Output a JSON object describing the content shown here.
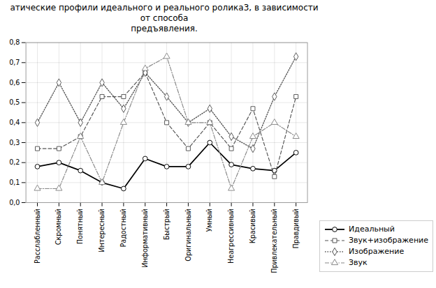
{
  "chart_data": {
    "type": "line",
    "title": "атические профили идеального и реального ролика3, в зависимости от способа\nпредъявления.",
    "categories": [
      "Расслабленный",
      "Скромный",
      "Понятный",
      "Интересный",
      "Радостный",
      "Информативный",
      "Быстрый",
      "Оригинальный",
      "Умный",
      "Неагрессивный",
      "Красивый",
      "Привлекательный",
      "Правдивый"
    ],
    "series": [
      {
        "name": "Идеальный",
        "color": "#000000",
        "marker": "circle",
        "line_style": "solid",
        "values": [
          0.18,
          0.2,
          0.16,
          0.1,
          0.07,
          0.22,
          0.18,
          0.18,
          0.3,
          0.19,
          0.17,
          0.16,
          0.25
        ]
      },
      {
        "name": "Звук+изображение",
        "color": "#555555",
        "marker": "square",
        "line_style": "dashed",
        "values": [
          0.27,
          0.27,
          0.33,
          0.53,
          0.53,
          0.65,
          0.4,
          0.27,
          0.4,
          0.27,
          0.47,
          0.13,
          0.53
        ]
      },
      {
        "name": "Изображение",
        "color": "#555555",
        "marker": "diamond",
        "line_style": "dotted",
        "values": [
          0.4,
          0.6,
          0.4,
          0.6,
          0.47,
          0.65,
          0.53,
          0.4,
          0.47,
          0.33,
          0.27,
          0.53,
          0.73
        ]
      },
      {
        "name": "Звук",
        "color": "#888888",
        "marker": "triangle",
        "line_style": "dashdot",
        "values": [
          0.07,
          0.07,
          0.33,
          0.1,
          0.4,
          0.67,
          0.73,
          0.4,
          0.4,
          0.07,
          0.33,
          0.4,
          0.33
        ]
      }
    ],
    "ylim": [
      0.0,
      0.8
    ],
    "yticks": [
      {
        "value": 0.0,
        "label": "0,0"
      },
      {
        "value": 0.1,
        "label": "0,1"
      },
      {
        "value": 0.2,
        "label": "0,2"
      },
      {
        "value": 0.3,
        "label": "0,3"
      },
      {
        "value": 0.4,
        "label": "0,4"
      },
      {
        "value": 0.5,
        "label": "0,5"
      },
      {
        "value": 0.6,
        "label": "0,6"
      },
      {
        "value": 0.7,
        "label": "0,7"
      },
      {
        "value": 0.8,
        "label": "0,8"
      }
    ],
    "grid": true,
    "legend": "lower right"
  }
}
